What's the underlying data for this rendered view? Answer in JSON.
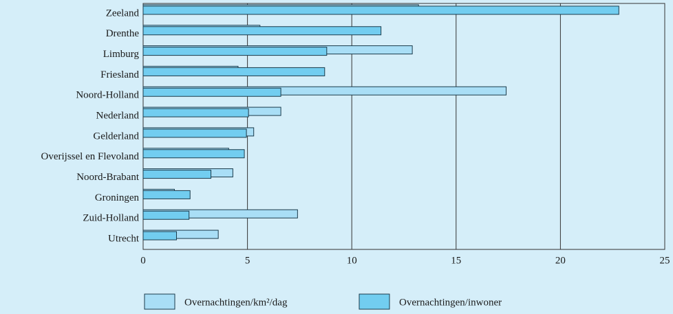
{
  "chart_data": {
    "type": "barh",
    "categories": [
      "Zeeland",
      "Drenthe",
      "Limburg",
      "Friesland",
      "Noord-Holland",
      "Nederland",
      "Gelderland",
      "Overijssel en Flevoland",
      "Noord-Brabant",
      "Groningen",
      "Zuid-Holland",
      "Utrecht"
    ],
    "series": [
      {
        "name": "Overnachtingen/km²/dag",
        "color": "#a9def6",
        "values": [
          13.2,
          5.6,
          12.9,
          4.55,
          17.4,
          6.6,
          5.3,
          4.1,
          4.3,
          1.5,
          7.4,
          3.6
        ]
      },
      {
        "name": "Overnachtingen/inwoner",
        "color": "#72cdf0",
        "values": [
          22.8,
          11.4,
          8.8,
          8.7,
          6.6,
          5.05,
          4.95,
          4.85,
          3.25,
          2.25,
          2.2,
          1.6
        ]
      }
    ],
    "xlim": [
      0,
      25
    ],
    "xticks": [
      0,
      5,
      10,
      15,
      20,
      25
    ],
    "grid": true
  }
}
